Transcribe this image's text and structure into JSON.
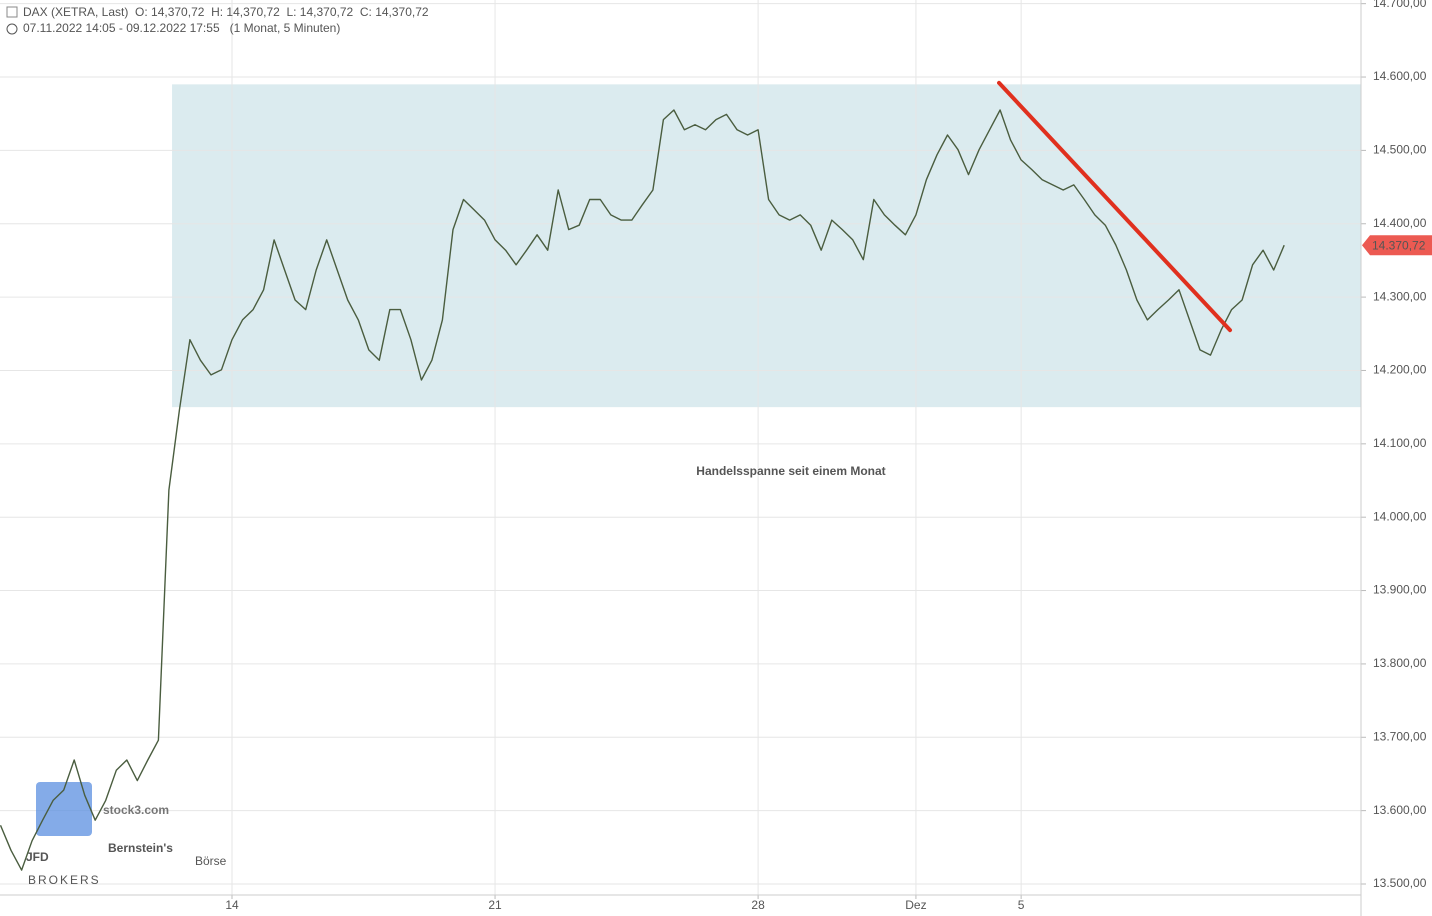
{
  "chart_data": {
    "type": "line",
    "header": "DAX (XETRA, Last)  O: 14,370,72  H: 14,370,72  L: 14,370,72  C: 14,370,72",
    "period": "07.11.2022 14:05 - 09.12.2022 17:55   (1 Monat, 5 Minuten)",
    "annotation": "Handelsspanne seit einem Monat",
    "last_value": {
      "value": 14370.72,
      "label": "14.370,72"
    },
    "watermarks": [
      "stock3.com",
      "JFD",
      "BROKERS",
      "Bernstein's",
      "Börse"
    ],
    "xlim": [
      0.59,
      26.46
    ],
    "ylim": [
      13485,
      14705
    ],
    "xticks": [
      {
        "value": 5,
        "label": "14"
      },
      {
        "value": 10,
        "label": "21"
      },
      {
        "value": 15,
        "label": "28"
      },
      {
        "value": 18,
        "label": "Dez"
      },
      {
        "value": 20,
        "label": "5"
      }
    ],
    "yticks": [
      {
        "value": 13500,
        "label": "13.500,00"
      },
      {
        "value": 13600,
        "label": "13.600,00"
      },
      {
        "value": 13700,
        "label": "13.700,00"
      },
      {
        "value": 13800,
        "label": "13.800,00"
      },
      {
        "value": 13900,
        "label": "13.900,00"
      },
      {
        "value": 14000,
        "label": "14.000,00"
      },
      {
        "value": 14100,
        "label": "14.100,00"
      },
      {
        "value": 14200,
        "label": "14.200,00"
      },
      {
        "value": 14300,
        "label": "14.300,00"
      },
      {
        "value": 14400,
        "label": "14.400,00"
      },
      {
        "value": 14500,
        "label": "14.500,00"
      },
      {
        "value": 14600,
        "label": "14.600,00"
      },
      {
        "value": 14700,
        "label": "14.700,00"
      }
    ],
    "grid": true,
    "range_band": {
      "x0": 3.86,
      "y": [
        14150,
        14590
      ],
      "color": "#d9eaee"
    },
    "trend_line": {
      "x": [
        19.58,
        23.97
      ],
      "y": [
        14592,
        14255
      ],
      "color": "#e0301e"
    },
    "series": [
      {
        "name": "DAX",
        "color": "#4a5d3f",
        "x": [
          0.6,
          0.8,
          1,
          1.2,
          1.4,
          1.6,
          1.8,
          2,
          2.2,
          2.4,
          2.6,
          2.8,
          3,
          3.2,
          3.4,
          3.6,
          3.8,
          4,
          4.2,
          4.4,
          4.6,
          4.8,
          5,
          5.2,
          5.4,
          5.6,
          5.8,
          6,
          6.2,
          6.4,
          6.6,
          6.8,
          7,
          7.2,
          7.4,
          7.6,
          7.8,
          8,
          8.2,
          8.4,
          8.6,
          8.8,
          9,
          9.2,
          9.4,
          9.6,
          9.8,
          10,
          10.2,
          10.4,
          10.6,
          10.8,
          11,
          11.2,
          11.4,
          11.6,
          11.8,
          12,
          12.2,
          12.4,
          12.6,
          12.8,
          13,
          13.2,
          13.4,
          13.6,
          13.8,
          14,
          14.2,
          14.4,
          14.6,
          14.8,
          15,
          15.2,
          15.4,
          15.6,
          15.8,
          16,
          16.2,
          16.4,
          16.6,
          16.8,
          17,
          17.2,
          17.4,
          17.6,
          17.8,
          18,
          18.2,
          18.4,
          18.6,
          18.8,
          19,
          19.2,
          19.4,
          19.6,
          19.8,
          20,
          20.2,
          20.4,
          20.6,
          20.8,
          21,
          21.2,
          21.4,
          21.6,
          21.8,
          22,
          22.2,
          22.4,
          22.6,
          22.8,
          23,
          23.2,
          23.4,
          23.6,
          23.8,
          24,
          24.2,
          24.4,
          24.6,
          24.8,
          25
        ],
        "values": [
          13580,
          13546,
          13519,
          13559,
          13587,
          13614,
          13628,
          13669,
          13621,
          13587,
          13614,
          13655,
          13669,
          13641,
          13669,
          13696,
          14037,
          14146,
          14242,
          14214,
          14194,
          14201,
          14242,
          14269,
          14283,
          14310,
          14378,
          14337,
          14296,
          14283,
          14337,
          14378,
          14337,
          14296,
          14269,
          14228,
          14214,
          14283,
          14283,
          14242,
          14187,
          14214,
          14269,
          14392,
          14433,
          14419,
          14405,
          14378,
          14364,
          14344,
          14364,
          14385,
          14364,
          14446,
          14392,
          14398,
          14433,
          14433,
          14412,
          14405,
          14405,
          14426,
          14446,
          14542,
          14555,
          14528,
          14535,
          14528,
          14542,
          14549,
          14528,
          14521,
          14528,
          14433,
          14412,
          14405,
          14412,
          14398,
          14364,
          14405,
          14392,
          14378,
          14351,
          14433,
          14412,
          14398,
          14385,
          14412,
          14460,
          14494,
          14521,
          14501,
          14467,
          14501,
          14528,
          14555,
          14514,
          14487,
          14474,
          14460,
          14453,
          14446,
          14453,
          14433,
          14412,
          14398,
          14371,
          14337,
          14296,
          14269,
          14283,
          14296,
          14310,
          14269,
          14228,
          14221,
          14255,
          14283,
          14296,
          14344,
          14364,
          14337,
          14370.72
        ]
      }
    ]
  }
}
